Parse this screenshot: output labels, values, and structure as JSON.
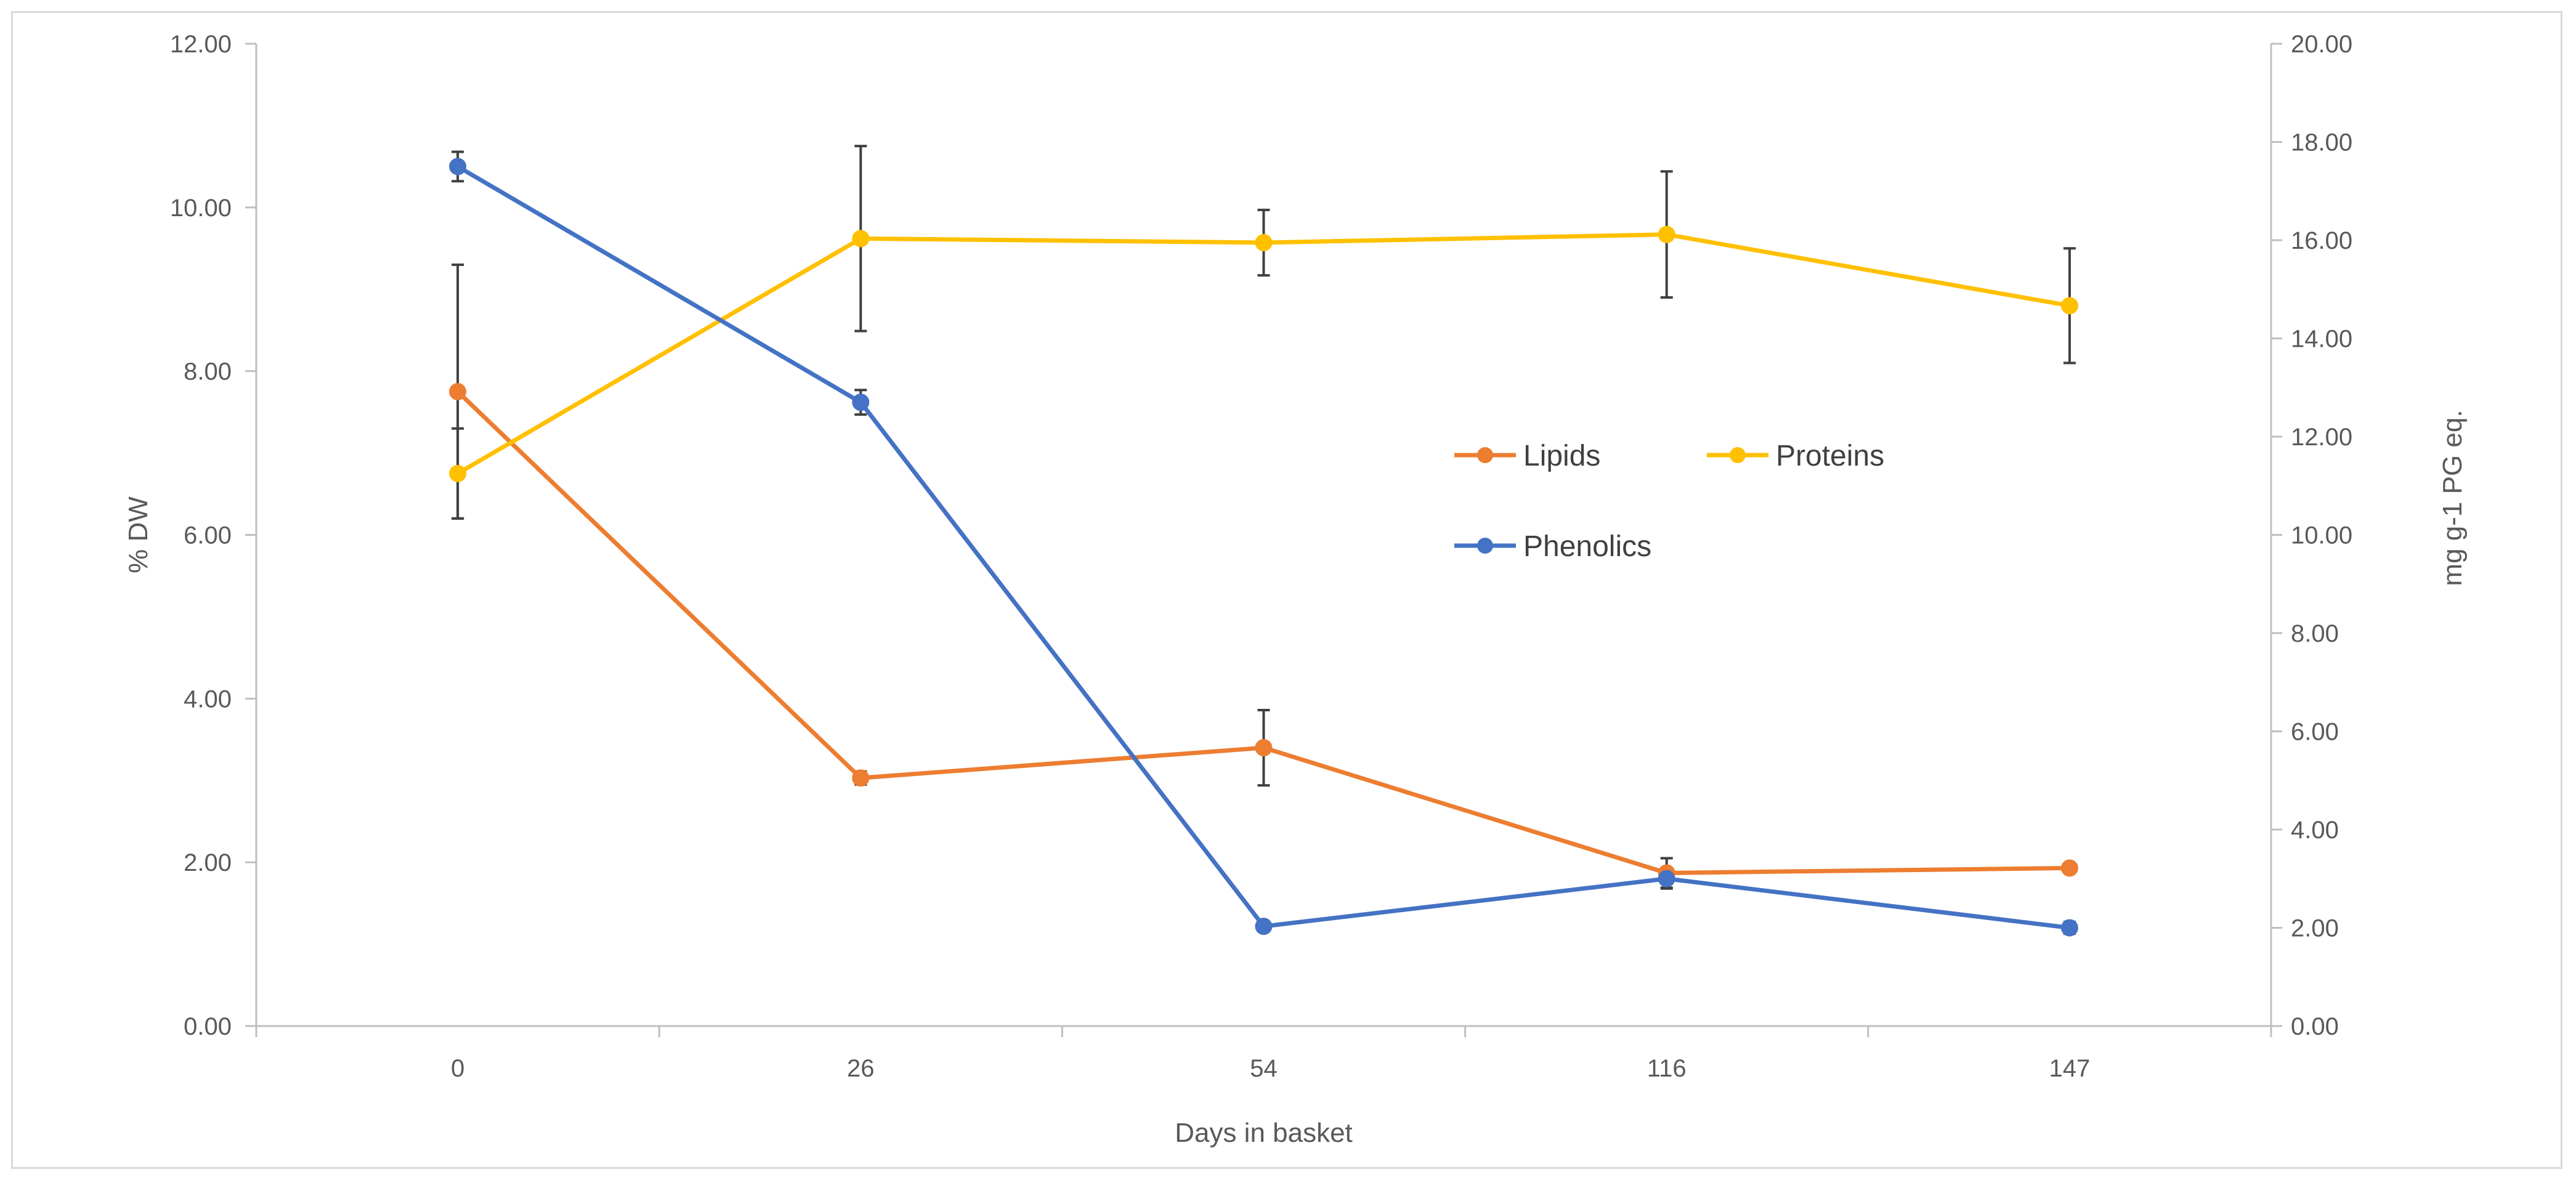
{
  "chart_data": {
    "type": "line",
    "title": "",
    "categories": [
      "0",
      "26",
      "54",
      "116",
      "147"
    ],
    "xlabel": "Days in basket",
    "ylabel": "% DW",
    "y2label": "mg g-1 PG eq.",
    "ylim": [
      0,
      12
    ],
    "y2lim": [
      0,
      20
    ],
    "yticks": [
      "0.00",
      "2.00",
      "4.00",
      "6.00",
      "8.00",
      "10.00",
      "12.00"
    ],
    "y2ticks": [
      "0.00",
      "2.00",
      "4.00",
      "6.00",
      "8.00",
      "10.00",
      "12.00",
      "14.00",
      "16.00",
      "18.00",
      "20.00"
    ],
    "legend_position": "center",
    "series": [
      {
        "name": "Lipids",
        "axis": "left",
        "color": "#ED7D31",
        "values": [
          7.75,
          3.03,
          3.4,
          1.87,
          1.93
        ],
        "errors": [
          1.55,
          0.08,
          0.46,
          0.18,
          0.05
        ]
      },
      {
        "name": "Proteins",
        "axis": "left",
        "color": "#FFC000",
        "values": [
          6.75,
          9.62,
          9.57,
          9.67,
          8.8
        ],
        "errors": [
          0.55,
          1.13,
          0.4,
          0.77,
          0.7
        ]
      },
      {
        "name": "Phenolics",
        "axis": "right",
        "color": "#4472C4",
        "values": [
          17.5,
          12.7,
          2.03,
          3.0,
          2.0
        ],
        "errors": [
          0.3,
          0.25,
          0.1,
          0.2,
          0.12
        ]
      }
    ]
  }
}
